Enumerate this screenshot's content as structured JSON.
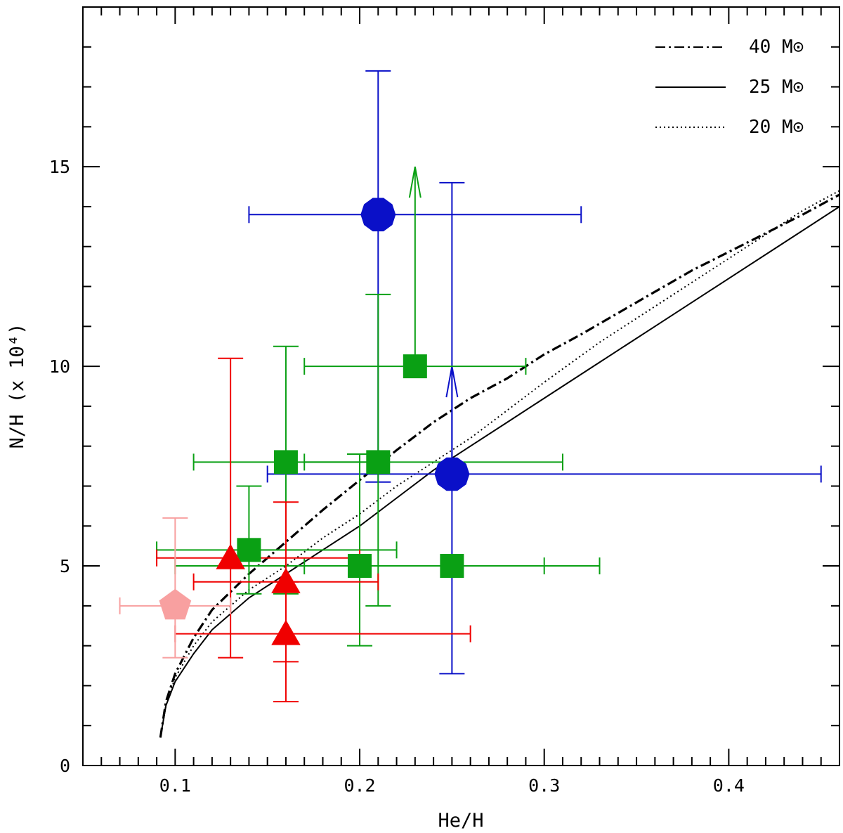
{
  "chart_data": {
    "type": "scatter",
    "title": "",
    "xlabel": "He/H",
    "ylabel": "N/H (x 10⁴)",
    "xlim": [
      0.05,
      0.46
    ],
    "ylim": [
      0,
      19
    ],
    "x_ticks": [
      "0.1",
      "0.2",
      "0.3",
      "0.4"
    ],
    "y_ticks": [
      "0",
      "5",
      "10",
      "15"
    ],
    "legend_position": "top-right",
    "legend": [
      {
        "label": "40 M⊙",
        "style": "dashdot"
      },
      {
        "label": "25 M⊙",
        "style": "solid"
      },
      {
        "label": "20 M⊙",
        "style": "dotted"
      }
    ],
    "models": [
      {
        "name": "40 M⊙",
        "style": "dashdot",
        "x": [
          0.092,
          0.095,
          0.1,
          0.11,
          0.12,
          0.14,
          0.16,
          0.18,
          0.2,
          0.22,
          0.24,
          0.26,
          0.28,
          0.3,
          0.32,
          0.35,
          0.38,
          0.41,
          0.44,
          0.46
        ],
        "y": [
          0.7,
          1.6,
          2.3,
          3.2,
          3.9,
          4.8,
          5.6,
          6.4,
          7.15,
          7.9,
          8.6,
          9.2,
          9.7,
          10.3,
          10.8,
          11.6,
          12.4,
          13.1,
          13.8,
          14.3
        ]
      },
      {
        "name": "25 M⊙",
        "style": "solid",
        "x": [
          0.092,
          0.095,
          0.1,
          0.11,
          0.12,
          0.14,
          0.16,
          0.18,
          0.2,
          0.22,
          0.24,
          0.26,
          0.28,
          0.3,
          0.33,
          0.36,
          0.39,
          0.42,
          0.44,
          0.46
        ],
        "y": [
          0.7,
          1.5,
          2.1,
          2.8,
          3.4,
          4.2,
          4.8,
          5.4,
          6.0,
          6.7,
          7.4,
          8.0,
          8.6,
          9.2,
          10.1,
          11.0,
          11.9,
          12.8,
          13.4,
          14.0
        ]
      },
      {
        "name": "20 M⊙",
        "style": "dotted",
        "x": [
          0.092,
          0.095,
          0.1,
          0.11,
          0.12,
          0.14,
          0.16,
          0.18,
          0.2,
          0.22,
          0.24,
          0.26,
          0.28,
          0.3,
          0.33,
          0.36,
          0.39,
          0.42,
          0.44,
          0.46
        ],
        "y": [
          0.7,
          1.5,
          2.2,
          3.0,
          3.6,
          4.4,
          5.0,
          5.7,
          6.3,
          7.0,
          7.6,
          8.2,
          8.9,
          9.6,
          10.6,
          11.5,
          12.4,
          13.3,
          13.9,
          14.4
        ]
      }
    ],
    "series": [
      {
        "marker": "circle",
        "color": "#0a10c8",
        "points": [
          {
            "x": 0.21,
            "y": 13.8,
            "xlo": 0.14,
            "xhi": 0.32,
            "ylo": 7.1,
            "yhi": 17.4
          },
          {
            "x": 0.25,
            "y": 7.3,
            "xlo": 0.15,
            "xhi": 0.45,
            "ylo": 2.3,
            "yhi": 14.6,
            "lower_limit_to": 10.0
          }
        ]
      },
      {
        "marker": "square",
        "color": "#0aa014",
        "points": [
          {
            "x": 0.23,
            "y": 10.0,
            "xlo": 0.17,
            "xhi": 0.29,
            "lower_limit_to": 15.0
          },
          {
            "x": 0.16,
            "y": 7.6,
            "xlo": 0.11,
            "xhi": 0.21,
            "ylo": 4.3,
            "yhi": 10.5
          },
          {
            "x": 0.21,
            "y": 7.6,
            "xlo": 0.17,
            "xhi": 0.31,
            "ylo": 4.0,
            "yhi": 11.8
          },
          {
            "x": 0.14,
            "y": 5.4,
            "xlo": 0.09,
            "xhi": 0.22,
            "ylo": 4.3,
            "yhi": 7.0
          },
          {
            "x": 0.2,
            "y": 5.0,
            "xlo": 0.1,
            "xhi": 0.3,
            "ylo": 3.0,
            "yhi": 7.8
          },
          {
            "x": 0.25,
            "y": 5.0,
            "xlo": 0.17,
            "xhi": 0.33
          }
        ]
      },
      {
        "marker": "triangle",
        "color": "#f00000",
        "points": [
          {
            "x": 0.13,
            "y": 5.2,
            "xlo": 0.09,
            "xhi": 0.2,
            "ylo": 2.7,
            "yhi": 10.2
          },
          {
            "x": 0.16,
            "y": 4.6,
            "xlo": 0.11,
            "xhi": 0.21,
            "ylo": 2.6,
            "yhi": 6.6
          },
          {
            "x": 0.16,
            "y": 3.3,
            "xlo": 0.1,
            "xhi": 0.26,
            "ylo": 1.6,
            "yhi": 4.6
          }
        ]
      },
      {
        "marker": "pentagon",
        "color": "#f8a0a0",
        "points": [
          {
            "x": 0.1,
            "y": 4.0,
            "xlo": 0.07,
            "xhi": 0.13,
            "ylo": 2.7,
            "yhi": 6.2
          }
        ]
      }
    ]
  }
}
